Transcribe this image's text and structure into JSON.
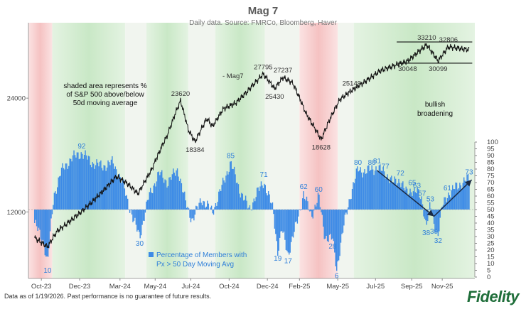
{
  "chart_data": {
    "type": "line",
    "title": "Mag 7",
    "subtitle": "Daily data.  Source: FMRCo, Bloomberg, Haver",
    "series": [
      {
        "name": "Mag7",
        "kind": "line",
        "axis": "left",
        "y_log": true,
        "points": [
          [
            "2023-10-02",
            10250
          ],
          [
            "2023-10-27",
            9700
          ],
          [
            "2023-11-15",
            10700
          ],
          [
            "2023-12-01",
            11100
          ],
          [
            "2023-12-28",
            11900
          ],
          [
            "2024-01-20",
            12700
          ],
          [
            "2024-02-15",
            13800
          ],
          [
            "2024-03-08",
            14900
          ],
          [
            "2024-03-28",
            14300
          ],
          [
            "2024-04-19",
            13400
          ],
          [
            "2024-05-15",
            15500
          ],
          [
            "2024-06-15",
            19200
          ],
          [
            "2024-07-10",
            23620
          ],
          [
            "2024-07-25",
            19800
          ],
          [
            "2024-08-07",
            18384
          ],
          [
            "2024-08-30",
            21200
          ],
          [
            "2024-09-10",
            20200
          ],
          [
            "2024-10-01",
            22500
          ],
          [
            "2024-10-25",
            23300
          ],
          [
            "2024-11-15",
            24900
          ],
          [
            "2024-12-17",
            27795
          ],
          [
            "2025-01-08",
            25430
          ],
          [
            "2025-01-24",
            27237
          ],
          [
            "2025-02-12",
            26300
          ],
          [
            "2025-03-10",
            21800
          ],
          [
            "2025-04-08",
            18628
          ],
          [
            "2025-04-24",
            21000
          ],
          [
            "2025-05-14",
            23800
          ],
          [
            "2025-06-06",
            25149
          ],
          [
            "2025-07-01",
            26500
          ],
          [
            "2025-08-01",
            28400
          ],
          [
            "2025-09-01",
            29400
          ],
          [
            "2025-09-22",
            30048
          ],
          [
            "2025-10-29",
            33210
          ],
          [
            "2025-11-20",
            30099
          ],
          [
            "2025-12-10",
            32806
          ],
          [
            "2026-01-19",
            32200
          ]
        ]
      },
      {
        "name": "Percentage of Members with Px > 50 Day Moving Avg",
        "kind": "bar",
        "axis": "right",
        "baseline": 50,
        "points": [
          [
            "2023-10-02",
            40
          ],
          [
            "2023-10-20",
            25
          ],
          [
            "2023-10-27",
            10
          ],
          [
            "2023-11-08",
            60
          ],
          [
            "2023-11-22",
            78
          ],
          [
            "2023-12-12",
            88
          ],
          [
            "2024-01-01",
            92
          ],
          [
            "2024-01-20",
            85
          ],
          [
            "2024-02-10",
            82
          ],
          [
            "2024-03-01",
            85
          ],
          [
            "2024-03-20",
            70
          ],
          [
            "2024-04-10",
            42
          ],
          [
            "2024-04-22",
            30
          ],
          [
            "2024-05-10",
            60
          ],
          [
            "2024-05-30",
            77
          ],
          [
            "2024-06-15",
            70
          ],
          [
            "2024-07-05",
            80
          ],
          [
            "2024-07-20",
            55
          ],
          [
            "2024-08-02",
            42
          ],
          [
            "2024-08-20",
            58
          ],
          [
            "2024-09-10",
            48
          ],
          [
            "2024-10-01",
            70
          ],
          [
            "2024-10-15",
            85
          ],
          [
            "2024-11-01",
            65
          ],
          [
            "2024-11-20",
            50
          ],
          [
            "2024-12-05",
            62
          ],
          [
            "2024-12-18",
            71
          ],
          [
            "2025-01-05",
            50
          ],
          [
            "2025-01-14",
            19
          ],
          [
            "2025-01-22",
            35
          ],
          [
            "2025-02-03",
            17
          ],
          [
            "2025-02-20",
            40
          ],
          [
            "2025-03-05",
            62
          ],
          [
            "2025-03-20",
            45
          ],
          [
            "2025-04-03",
            60
          ],
          [
            "2025-04-15",
            30
          ],
          [
            "2025-04-30",
            28
          ],
          [
            "2025-05-08",
            6
          ],
          [
            "2025-05-22",
            38
          ],
          [
            "2025-06-03",
            60
          ],
          [
            "2025-06-18",
            80
          ],
          [
            "2025-07-03",
            78
          ],
          [
            "2025-07-15",
            80
          ],
          [
            "2025-07-25",
            81
          ],
          [
            "2025-08-10",
            77
          ],
          [
            "2025-08-25",
            70
          ],
          [
            "2025-09-08",
            72
          ],
          [
            "2025-09-20",
            62
          ],
          [
            "2025-10-01",
            65
          ],
          [
            "2025-10-10",
            63
          ],
          [
            "2025-10-20",
            57
          ],
          [
            "2025-10-28",
            38
          ],
          [
            "2025-11-05",
            53
          ],
          [
            "2025-11-12",
            39
          ],
          [
            "2025-11-20",
            32
          ],
          [
            "2025-11-28",
            52
          ],
          [
            "2025-12-08",
            61
          ],
          [
            "2025-12-20",
            65
          ],
          [
            "2026-01-05",
            70
          ],
          [
            "2026-01-19",
            73
          ]
        ]
      }
    ],
    "x_ticks": [
      "Oct-23",
      "Dec-23",
      "Mar-24",
      "May-24",
      "Jul-24",
      "Oct-24",
      "Dec-24",
      "Feb-25",
      "May-25",
      "Jul-25",
      "Sep-25",
      "Nov-25"
    ],
    "y_left_ticks": [
      "12000",
      "24000"
    ],
    "y_left_tick_values": [
      12000,
      24000
    ],
    "y_left_range": [
      8000,
      38000
    ],
    "y_right_ticks": [
      "0",
      "5",
      "10",
      "15",
      "20",
      "25",
      "30",
      "35",
      "40",
      "45",
      "50",
      "55",
      "60",
      "65",
      "70",
      "75",
      "80",
      "85",
      "90",
      "95",
      "100"
    ],
    "y_right_range": [
      0,
      100
    ],
    "x_range": [
      "2023-09-20",
      "2026-01-30"
    ],
    "shading_bands": [
      [
        "2023-09-20",
        "2023-11-05",
        "red"
      ],
      [
        "2023-11-05",
        "2024-03-25",
        "green"
      ],
      [
        "2024-03-25",
        "2024-05-05",
        "neutral"
      ],
      [
        "2024-05-05",
        "2024-07-25",
        "green"
      ],
      [
        "2024-07-25",
        "2024-09-15",
        "neutral"
      ],
      [
        "2024-09-15",
        "2024-12-20",
        "green"
      ],
      [
        "2024-12-20",
        "2025-02-25",
        "neutral"
      ],
      [
        "2025-02-25",
        "2025-05-10",
        "red"
      ],
      [
        "2025-05-10",
        "2025-06-10",
        "neutral"
      ],
      [
        "2025-06-10",
        "2026-01-30",
        "green"
      ]
    ],
    "price_labels": [
      {
        "text": "23620",
        "date": "2024-07-10",
        "y": 23620,
        "pos": "above"
      },
      {
        "text": "18384",
        "date": "2024-08-07",
        "y": 18384,
        "pos": "below"
      },
      {
        "text": "27795",
        "date": "2024-12-17",
        "y": 27795,
        "pos": "above"
      },
      {
        "text": "25430",
        "date": "2025-01-08",
        "y": 25430,
        "pos": "below"
      },
      {
        "text": "27237",
        "date": "2025-01-24",
        "y": 27237,
        "pos": "above"
      },
      {
        "text": "18628",
        "date": "2025-04-08",
        "y": 18628,
        "pos": "below"
      },
      {
        "text": "25149",
        "date": "2025-06-06",
        "y": 25149,
        "pos": "above"
      },
      {
        "text": "30048",
        "date": "2025-09-22",
        "y": 30048,
        "pos": "below"
      },
      {
        "text": "33210",
        "date": "2025-10-29",
        "y": 33210,
        "pos": "above"
      },
      {
        "text": "30099",
        "date": "2025-11-20",
        "y": 30099,
        "pos": "below"
      },
      {
        "text": "32806",
        "date": "2025-12-10",
        "y": 32806,
        "pos": "above"
      }
    ],
    "breadth_labels": [
      {
        "text": "10",
        "date": "2023-10-27",
        "value": 10,
        "pos": "below"
      },
      {
        "text": "92",
        "date": "2024-01-01",
        "value": 92,
        "pos": "above"
      },
      {
        "text": "30",
        "date": "2024-04-22",
        "value": 30,
        "pos": "below"
      },
      {
        "text": "85",
        "date": "2024-10-15",
        "value": 85,
        "pos": "above"
      },
      {
        "text": "71",
        "date": "2024-12-18",
        "value": 71,
        "pos": "above"
      },
      {
        "text": "19",
        "date": "2025-01-14",
        "value": 19,
        "pos": "below"
      },
      {
        "text": "17",
        "date": "2025-02-03",
        "value": 17,
        "pos": "below"
      },
      {
        "text": "62",
        "date": "2025-03-05",
        "value": 62,
        "pos": "above"
      },
      {
        "text": "60",
        "date": "2025-04-03",
        "value": 60,
        "pos": "above"
      },
      {
        "text": "28",
        "date": "2025-04-30",
        "value": 28,
        "pos": "below"
      },
      {
        "text": "6",
        "date": "2025-05-08",
        "value": 6,
        "pos": "below"
      },
      {
        "text": "80",
        "date": "2025-06-18",
        "value": 80,
        "pos": "above"
      },
      {
        "text": "80",
        "date": "2025-07-15",
        "value": 80,
        "pos": "above"
      },
      {
        "text": "81",
        "date": "2025-07-25",
        "value": 81,
        "pos": "above"
      },
      {
        "text": "77",
        "date": "2025-08-10",
        "value": 77,
        "pos": "above"
      },
      {
        "text": "72",
        "date": "2025-09-08",
        "value": 72,
        "pos": "above"
      },
      {
        "text": "65",
        "date": "2025-10-01",
        "value": 65,
        "pos": "above"
      },
      {
        "text": "63",
        "date": "2025-10-10",
        "value": 63,
        "pos": "above"
      },
      {
        "text": "57",
        "date": "2025-10-20",
        "value": 57,
        "pos": "above"
      },
      {
        "text": "38",
        "date": "2025-10-28",
        "value": 38,
        "pos": "below"
      },
      {
        "text": "53",
        "date": "2025-11-05",
        "value": 53,
        "pos": "above"
      },
      {
        "text": "39",
        "date": "2025-11-12",
        "value": 39,
        "pos": "below"
      },
      {
        "text": "32",
        "date": "2025-11-20",
        "value": 32,
        "pos": "below"
      },
      {
        "text": "61",
        "date": "2025-12-08",
        "value": 61,
        "pos": "above"
      },
      {
        "text": "73",
        "date": "2026-01-19",
        "value": 73,
        "pos": "above"
      }
    ],
    "trend_arrows": [
      {
        "from": [
          "2025-07-25",
          79
        ],
        "to": [
          "2025-11-12",
          45
        ],
        "axis": "right"
      },
      {
        "from": [
          "2025-11-12",
          45
        ],
        "to": [
          "2026-01-24",
          72
        ],
        "axis": "right"
      }
    ],
    "range_box": {
      "from": "2025-09-01",
      "to": "2026-01-25",
      "top": 33800,
      "bottom": 29700
    },
    "annotations": {
      "shading_note": [
        "shaded area represents %",
        "of S&P 500 above/below",
        "50d moving average"
      ],
      "series_tag": "- Mag7",
      "bullish": [
        "bullish",
        "broadening"
      ],
      "legend_line1": "Percentage of Members with",
      "legend_line2": "Px > 50 Day Moving Avg"
    },
    "colors": {
      "line": "#111111",
      "bars": "#3d8be6",
      "green_band": "#d2ecd0",
      "red_band": "#f7cccc",
      "neutral_band": "#f1f5ef",
      "label_blue": "#2f7fd9",
      "arrow": "#1a2a44"
    }
  },
  "footer": {
    "note": "Data as of 1/19/2026. Past performance is no guarantee of future results.",
    "logo_text": "Fidelity"
  }
}
